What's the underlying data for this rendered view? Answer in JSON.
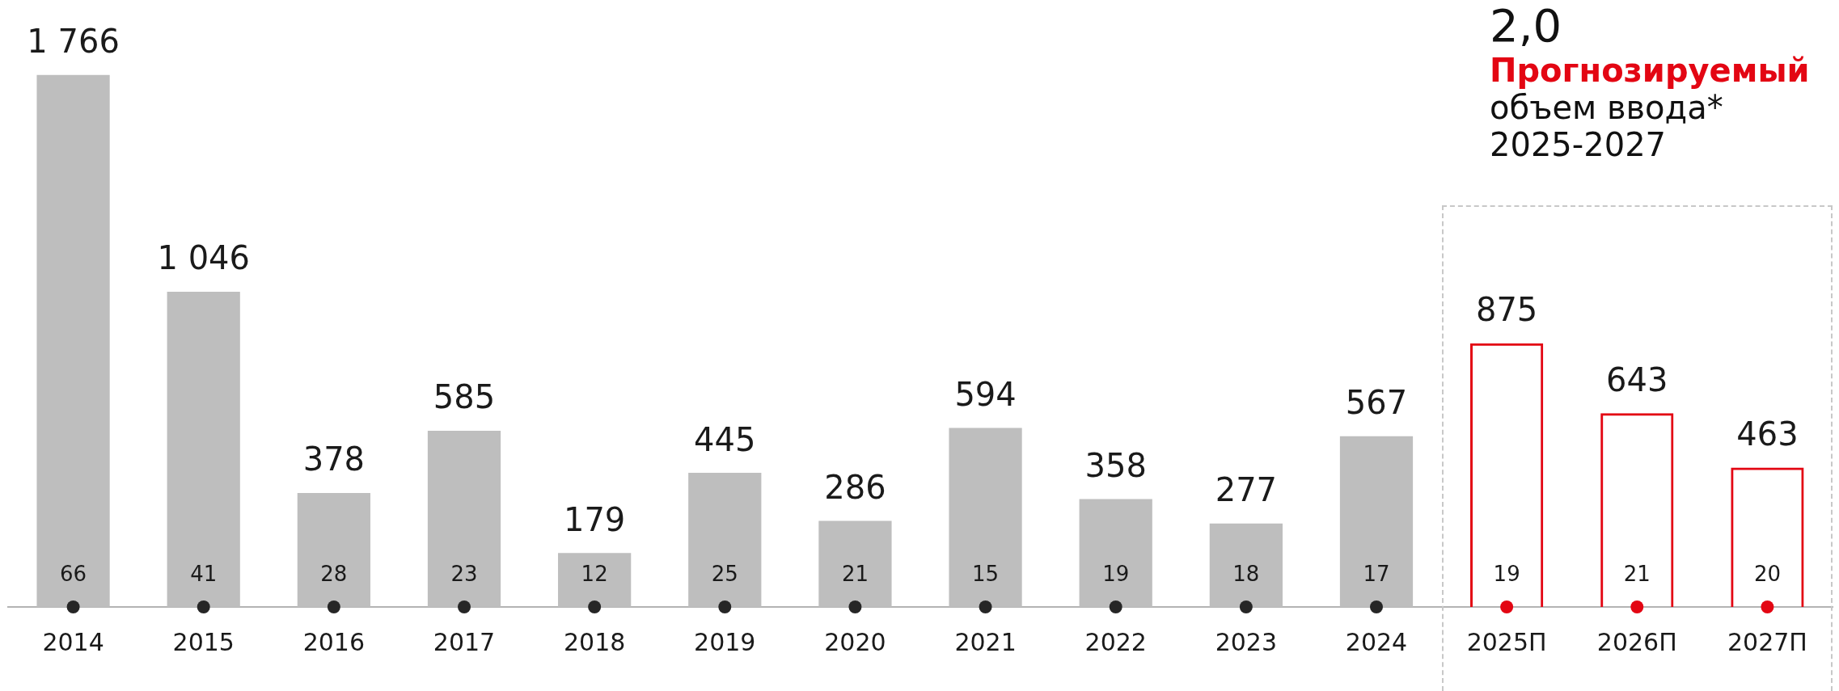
{
  "chart_data": {
    "type": "bar",
    "categories": [
      "2014",
      "2015",
      "2016",
      "2017",
      "2018",
      "2019",
      "2020",
      "2021",
      "2022",
      "2023",
      "2024",
      "2025П",
      "2026П",
      "2027П"
    ],
    "series": [
      {
        "color": "#bebebe",
        "values": [
          1766,
          1046,
          378,
          585,
          179,
          445,
          286,
          594,
          358,
          277,
          567,
          null,
          null,
          null
        ],
        "value_labels": [
          "1 766",
          "1 046",
          "378",
          "585",
          "179",
          "445",
          "286",
          "594",
          "358",
          "277",
          "567",
          null,
          null,
          null
        ]
      },
      {
        "color": "#e30613",
        "values": [
          null,
          null,
          null,
          null,
          null,
          null,
          null,
          null,
          null,
          null,
          null,
          875,
          643,
          463
        ],
        "value_labels": [
          null,
          null,
          null,
          null,
          null,
          null,
          null,
          null,
          null,
          null,
          null,
          "875",
          "643",
          "463"
        ]
      },
      {
        "type": "scatter",
        "values": [
          0,
          0,
          0,
          0,
          0,
          0,
          0,
          0,
          0,
          0,
          0,
          0,
          0,
          0
        ],
        "colors": [
          "#262626",
          "#262626",
          "#262626",
          "#262626",
          "#262626",
          "#262626",
          "#262626",
          "#262626",
          "#262626",
          "#262626",
          "#262626",
          "#e30613",
          "#e30613",
          "#e30613"
        ]
      }
    ],
    "tick_labels": "x",
    "grid": false,
    "legend": false,
    "marker": "circle",
    "annotations": [
      "2,0",
      "Прогнозируемый",
      "объем ввода*",
      "2025-2027",
      {
        "text": "66",
        "x": "2014",
        "y": 0
      },
      {
        "text": "41",
        "x": "2015",
        "y": 0
      },
      {
        "text": "28",
        "x": "2016",
        "y": 0
      },
      {
        "text": "23",
        "x": "2017",
        "y": 0
      },
      {
        "text": "12",
        "x": "2018",
        "y": 0
      },
      {
        "text": "25",
        "x": "2019",
        "y": 0
      },
      {
        "text": "21",
        "x": "2020",
        "y": 0
      },
      {
        "text": "15",
        "x": "2021",
        "y": 0
      },
      {
        "text": "19",
        "x": "2022",
        "y": 0
      },
      {
        "text": "18",
        "x": "2023",
        "y": 0
      },
      {
        "text": "17",
        "x": "2024",
        "y": 0
      },
      {
        "text": "19",
        "x": "2025П",
        "y": 0
      },
      {
        "text": "21",
        "x": "2026П",
        "y": 0
      },
      {
        "text": "20",
        "x": "2027П",
        "y": 0
      }
    ]
  }
}
